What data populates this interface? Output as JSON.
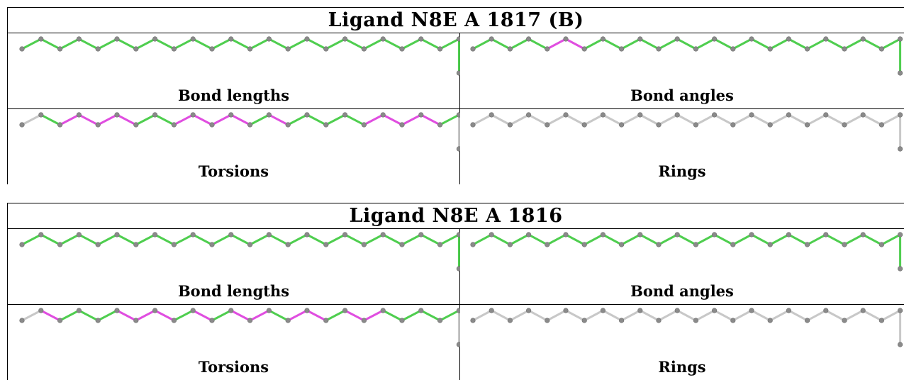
{
  "ligands": [
    {
      "title": "Ligand N8E A 1817 (B)",
      "panels": [
        {
          "label": "Bond lengths",
          "colors": [
            "green",
            "green",
            "green",
            "green",
            "green",
            "green",
            "green",
            "green",
            "green",
            "green",
            "green",
            "green",
            "green",
            "green",
            "green",
            "green",
            "green",
            "green",
            "green",
            "green",
            "green",
            "green",
            "green",
            "green"
          ]
        },
        {
          "label": "Bond angles",
          "colors": [
            "green",
            "green",
            "green",
            "green",
            "magenta",
            "magenta",
            "green",
            "green",
            "green",
            "green",
            "green",
            "green",
            "green",
            "green",
            "green",
            "green",
            "green",
            "green",
            "green",
            "green",
            "green",
            "green",
            "green",
            "green"
          ]
        },
        {
          "label": "Torsions",
          "colors": [
            "gray",
            "green",
            "magenta",
            "magenta",
            "magenta",
            "magenta",
            "green",
            "green",
            "magenta",
            "magenta",
            "magenta",
            "magenta",
            "green",
            "magenta",
            "green",
            "green",
            "green",
            "green",
            "magenta",
            "magenta",
            "magenta",
            "magenta",
            "green",
            "gray"
          ]
        },
        {
          "label": "Rings",
          "colors": [
            "gray",
            "gray",
            "gray",
            "gray",
            "gray",
            "gray",
            "gray",
            "gray",
            "gray",
            "gray",
            "gray",
            "gray",
            "gray",
            "gray",
            "gray",
            "gray",
            "gray",
            "gray",
            "gray",
            "gray",
            "gray",
            "gray",
            "gray",
            "gray"
          ]
        }
      ]
    },
    {
      "title": "Ligand N8E A 1816",
      "panels": [
        {
          "label": "Bond lengths",
          "colors": [
            "green",
            "green",
            "green",
            "green",
            "green",
            "green",
            "green",
            "green",
            "green",
            "green",
            "green",
            "green",
            "green",
            "green",
            "green",
            "green",
            "green",
            "green",
            "green",
            "green",
            "green",
            "green",
            "green",
            "green"
          ]
        },
        {
          "label": "Bond angles",
          "colors": [
            "green",
            "green",
            "green",
            "green",
            "green",
            "green",
            "green",
            "green",
            "green",
            "green",
            "green",
            "green",
            "green",
            "green",
            "green",
            "green",
            "green",
            "green",
            "green",
            "green",
            "green",
            "green",
            "green",
            "green"
          ]
        },
        {
          "label": "Torsions",
          "colors": [
            "gray",
            "magenta",
            "green",
            "green",
            "green",
            "magenta",
            "magenta",
            "magenta",
            "green",
            "magenta",
            "green",
            "magenta",
            "magenta",
            "green",
            "magenta",
            "magenta",
            "green",
            "magenta",
            "magenta",
            "green",
            "green",
            "green",
            "green",
            "gray"
          ]
        },
        {
          "label": "Rings",
          "colors": [
            "gray",
            "gray",
            "gray",
            "gray",
            "gray",
            "gray",
            "gray",
            "gray",
            "gray",
            "gray",
            "gray",
            "gray",
            "gray",
            "gray",
            "gray",
            "gray",
            "gray",
            "gray",
            "gray",
            "gray",
            "gray",
            "gray",
            "gray",
            "gray"
          ]
        }
      ]
    }
  ],
  "palette": {
    "green": "#4fce4f",
    "magenta": "#e04ee0",
    "gray": "#c8c8c8",
    "atom": "#8a8a8a"
  }
}
